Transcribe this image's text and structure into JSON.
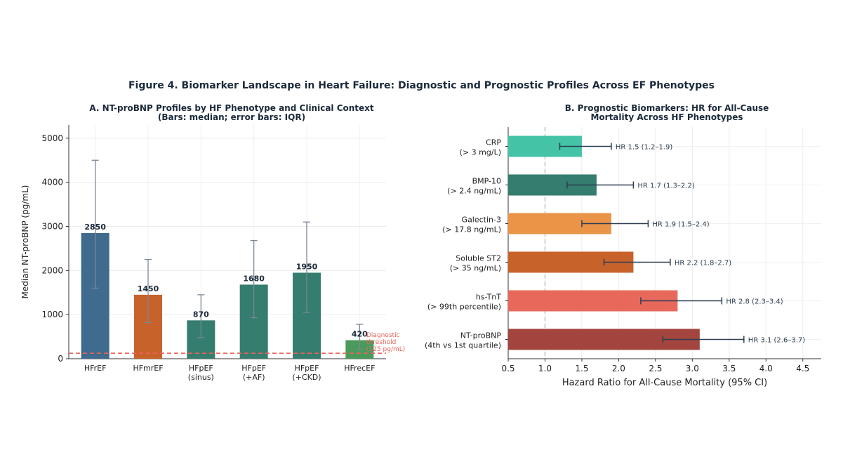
{
  "figure_title": "Figure 4. Biomarker Landscape in Heart Failure: Diagnostic and Prognostic Profiles Across EF Phenotypes",
  "chart_data": [
    {
      "type": "bar",
      "title_line1": "A. NT-proBNP Profiles by HF Phenotype and Clinical Context",
      "title_line2": "(Bars: median; error bars: IQR)",
      "ylabel": "Median NT-proBNP (pg/mL)",
      "ylim": [
        0,
        5300
      ],
      "yticks": [
        0,
        1000,
        2000,
        3000,
        4000,
        5000
      ],
      "categories": [
        {
          "label": [
            "HFrEF"
          ],
          "value": 2850,
          "err_low": 1600,
          "err_high": 4500,
          "color": "#3f6b8e"
        },
        {
          "label": [
            "HFmrEF"
          ],
          "value": 1450,
          "err_low": 820,
          "err_high": 2250,
          "color": "#c8622b"
        },
        {
          "label": [
            "HFpEF",
            "(sinus)"
          ],
          "value": 870,
          "err_low": 480,
          "err_high": 1450,
          "color": "#357d6e"
        },
        {
          "label": [
            "HFpEF",
            "(+AF)"
          ],
          "value": 1680,
          "err_low": 930,
          "err_high": 2680,
          "color": "#357d6e"
        },
        {
          "label": [
            "HFpEF",
            "(+CKD)"
          ],
          "value": 1950,
          "err_low": 1050,
          "err_high": 3100,
          "color": "#357d6e"
        },
        {
          "label": [
            "HFrecEF"
          ],
          "value": 420,
          "err_low": 210,
          "err_high": 780,
          "color": "#4a9a5c"
        }
      ],
      "threshold": {
        "value": 125,
        "label_lines": [
          "Diagnostic",
          "threshold",
          "(125 pg/mL)"
        ],
        "color": "#e8635a"
      }
    },
    {
      "type": "forest",
      "title_line1": "B. Prognostic Biomarkers: HR for All-Cause",
      "title_line2": "Mortality Across HF Phenotypes",
      "xlabel": "Hazard Ratio for All-Cause Mortality (95% CI)",
      "xlim": [
        0.5,
        4.75
      ],
      "xticks": [
        "0.5",
        "1.0",
        "1.5",
        "2.0",
        "2.5",
        "3.0",
        "3.5",
        "4.0",
        "4.5"
      ],
      "reference_line": 1.0,
      "markers": [
        {
          "label": [
            "CRP",
            "(> 3 mg/L)"
          ],
          "hr": 1.5,
          "ci_low": 1.2,
          "ci_high": 1.9,
          "text": "HR 1.5 (1.2–1.9)",
          "color": "#45c3a6"
        },
        {
          "label": [
            "BMP-10",
            "(> 2.4 ng/mL)"
          ],
          "hr": 1.7,
          "ci_low": 1.3,
          "ci_high": 2.2,
          "text": "HR 1.7 (1.3–2.2)",
          "color": "#357d6e"
        },
        {
          "label": [
            "Galectin-3",
            "(> 17.8 ng/mL)"
          ],
          "hr": 1.9,
          "ci_low": 1.5,
          "ci_high": 2.4,
          "text": "HR 1.9 (1.5–2.4)",
          "color": "#ea9448"
        },
        {
          "label": [
            "Soluble ST2",
            "(> 35 ng/mL)"
          ],
          "hr": 2.2,
          "ci_low": 1.8,
          "ci_high": 2.7,
          "text": "HR 2.2 (1.8–2.7)",
          "color": "#c8622b"
        },
        {
          "label": [
            "hs-TnT",
            "(> 99th percentile)"
          ],
          "hr": 2.8,
          "ci_low": 2.3,
          "ci_high": 3.4,
          "text": "HR 2.8 (2.3–3.4)",
          "color": "#e8685c"
        },
        {
          "label": [
            "NT-proBNP",
            "(4th vs 1st quartile)"
          ],
          "hr": 3.1,
          "ci_low": 2.6,
          "ci_high": 3.7,
          "text": "HR 3.1 (2.6–3.7)",
          "color": "#a3453e"
        }
      ]
    }
  ]
}
